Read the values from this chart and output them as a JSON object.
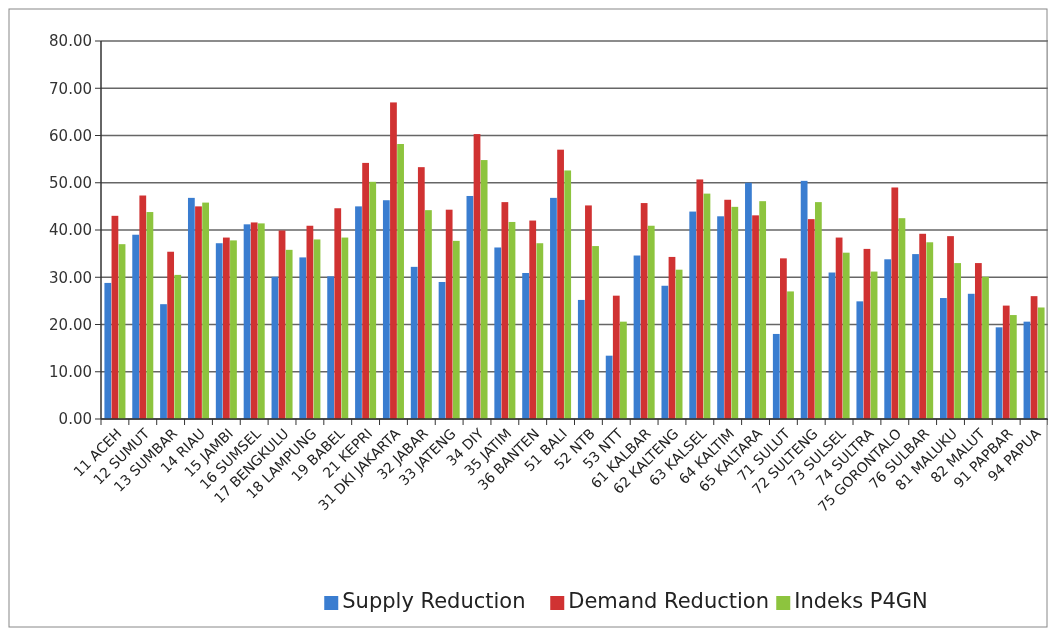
{
  "chart_data": {
    "type": "bar",
    "categories": [
      "11 ACEH",
      "12 SUMUT",
      "13 SUMBAR",
      "14 RIAU",
      "15 JAMBI",
      "16 SUMSEL",
      "17 BENGKULU",
      "18 LAMPUNG",
      "19 BABEL",
      "21 KEPRI",
      "31 DKI JAKARTA",
      "32 JABAR",
      "33 JATENG",
      "34 DIY",
      "35 JATIM",
      "36 BANTEN",
      "51 BALI",
      "52 NTB",
      "53 NTT",
      "61 KALBAR",
      "62 KALTENG",
      "63 KALSEL",
      "64 KALTIM",
      "65 KALTARA",
      "71 SULUT",
      "72 SULTENG",
      "73 SULSEL",
      "74 SULTRA",
      "75 GORONTALO",
      "76 SULBAR",
      "81 MALUKU",
      "82 MALUT",
      "91 PAPBAR",
      "94 PAPUA"
    ],
    "series": [
      {
        "name": "Supply Reduction",
        "color": "#3a7dd0",
        "values": [
          28.8,
          39,
          24.3,
          46.8,
          37.2,
          41.2,
          30.1,
          34.2,
          30.2,
          45,
          46.3,
          32.2,
          29,
          47.2,
          36.3,
          30.9,
          46.8,
          25.2,
          13.4,
          34.6,
          28.2,
          43.9,
          42.9,
          50,
          18,
          50.4,
          31,
          24.9,
          33.8,
          34.9,
          25.6,
          26.5,
          19.4,
          20.6
        ]
      },
      {
        "name": "Demand Reduction",
        "color": "#d03232",
        "values": [
          43,
          47.3,
          35.4,
          45,
          38.4,
          41.6,
          39.9,
          40.9,
          44.6,
          54.2,
          67,
          53.3,
          44.3,
          60.3,
          45.9,
          42,
          57,
          45.2,
          26.1,
          45.7,
          34.3,
          50.7,
          46.4,
          43.1,
          34,
          42.3,
          38.4,
          36,
          49,
          39.2,
          38.7,
          33,
          24,
          26
        ]
      },
      {
        "name": "Indeks P4GN",
        "color": "#8dc43e",
        "values": [
          37,
          43.8,
          30.5,
          45.8,
          37.8,
          41.4,
          35.8,
          38,
          38.4,
          50.2,
          58.2,
          44.2,
          37.7,
          54.8,
          41.7,
          37.2,
          52.6,
          36.6,
          20.6,
          40.9,
          31.6,
          47.7,
          44.9,
          46.1,
          27,
          45.9,
          35.2,
          31.2,
          42.5,
          37.4,
          33,
          30.1,
          22,
          23.6
        ]
      }
    ],
    "ylim": [
      0,
      80
    ],
    "yticks": [
      {
        "value": 0,
        "label": "0.00"
      },
      {
        "value": 10,
        "label": "10.00"
      },
      {
        "value": 20,
        "label": "20.00"
      },
      {
        "value": 30,
        "label": "30.00"
      },
      {
        "value": 40,
        "label": "40.00"
      },
      {
        "value": 50,
        "label": "50.00"
      },
      {
        "value": 60,
        "label": "60.00"
      },
      {
        "value": 70,
        "label": "70.00"
      },
      {
        "value": 80,
        "label": "80.00"
      }
    ],
    "grid": "y",
    "legend": "bottom"
  }
}
